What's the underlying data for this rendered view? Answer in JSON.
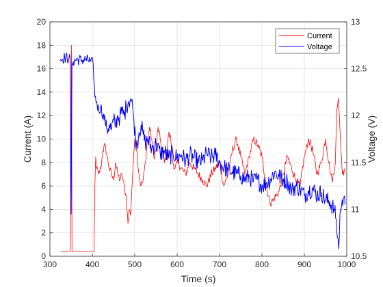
{
  "chart_data": {
    "type": "line",
    "xlabel": "Time (s)",
    "ylabel_left": "Current (A)",
    "ylabel_right": "Voltage (V)",
    "xlim": [
      300,
      1000
    ],
    "ylim_left": [
      0,
      20
    ],
    "ylim_right": [
      10.5,
      13
    ],
    "x_ticks": [
      "300",
      "400",
      "500",
      "600",
      "700",
      "800",
      "900",
      "1000"
    ],
    "y_left_ticks": [
      "0",
      "2",
      "4",
      "6",
      "8",
      "10",
      "12",
      "14",
      "16",
      "18",
      "20"
    ],
    "y_right_ticks": [
      "10.5",
      "11",
      "11.5",
      "12",
      "12.5",
      "13"
    ],
    "grid": true,
    "legend": "top-right",
    "series": [
      {
        "name": "Current",
        "axis": "left",
        "color": "#ff0000",
        "x": [
          325,
          345,
          348,
          349,
          350,
          351,
          352,
          354,
          360,
          380,
          404,
          406,
          408,
          410,
          415,
          420,
          425,
          430,
          435,
          440,
          445,
          450,
          455,
          460,
          465,
          470,
          475,
          480,
          484,
          487,
          490,
          495,
          500,
          505,
          510,
          515,
          520,
          525,
          530,
          535,
          540,
          545,
          550,
          555,
          560,
          565,
          570,
          575,
          580,
          585,
          590,
          595,
          600,
          610,
          620,
          630,
          640,
          650,
          660,
          670,
          680,
          690,
          700,
          710,
          720,
          730,
          740,
          750,
          760,
          770,
          780,
          790,
          800,
          810,
          820,
          830,
          840,
          850,
          860,
          870,
          880,
          890,
          900,
          910,
          920,
          930,
          940,
          950,
          960,
          965,
          970,
          973,
          976,
          980,
          985,
          990,
          995
        ],
        "y": [
          0.4,
          0.4,
          0.4,
          5,
          10,
          18,
          0.4,
          0.4,
          0.4,
          0.4,
          0.4,
          6,
          8.5,
          7.5,
          7,
          7.5,
          9,
          9.5,
          8.5,
          7.5,
          7,
          6.5,
          8,
          7,
          6.5,
          7,
          6,
          5,
          2.8,
          4,
          3.5,
          7,
          10,
          9,
          7,
          6,
          6.5,
          8,
          10,
          11,
          10,
          8.5,
          9,
          11,
          10,
          9,
          8,
          9,
          10.5,
          10,
          8,
          7.5,
          8,
          7.5,
          7,
          8,
          7.5,
          7,
          6.5,
          6,
          7,
          7.5,
          8,
          6,
          7,
          9,
          10,
          8.5,
          7,
          8.5,
          10,
          9.5,
          8.5,
          6,
          4.5,
          5,
          5.5,
          7,
          8.5,
          7.5,
          6.5,
          6,
          8.5,
          10,
          9,
          7,
          8,
          10,
          7.5,
          6.5,
          7,
          8,
          12.5,
          13.5,
          10,
          7,
          7.5
        ]
      },
      {
        "name": "Voltage",
        "axis": "right",
        "color": "#0000ff",
        "x": [
          325,
          335,
          345,
          348,
          349,
          350,
          352,
          355,
          365,
          375,
          385,
          395,
          402,
          406,
          410,
          415,
          420,
          425,
          430,
          435,
          440,
          445,
          450,
          455,
          460,
          465,
          470,
          475,
          480,
          485,
          490,
          495,
          498,
          502,
          506,
          510,
          515,
          520,
          525,
          530,
          540,
          550,
          560,
          570,
          580,
          590,
          600,
          610,
          620,
          630,
          640,
          650,
          660,
          670,
          680,
          690,
          700,
          710,
          720,
          730,
          740,
          750,
          760,
          770,
          780,
          790,
          800,
          810,
          820,
          830,
          840,
          850,
          860,
          870,
          880,
          890,
          900,
          910,
          920,
          930,
          940,
          950,
          960,
          970,
          975,
          978,
          981,
          984,
          988,
          992,
          996
        ],
        "y": [
          12.6,
          12.62,
          12.61,
          12.6,
          11.2,
          10.95,
          12.55,
          12.58,
          12.6,
          12.59,
          12.6,
          12.58,
          12.55,
          12.2,
          12.15,
          12.05,
          12.1,
          12.0,
          11.95,
          11.85,
          11.9,
          11.85,
          11.95,
          11.9,
          12.0,
          11.98,
          12.05,
          12.0,
          12.1,
          12.15,
          12.18,
          12.1,
          11.95,
          11.75,
          11.7,
          11.82,
          11.9,
          11.8,
          11.7,
          11.75,
          11.65,
          11.7,
          11.6,
          11.62,
          11.55,
          11.6,
          11.55,
          11.58,
          11.52,
          11.58,
          11.55,
          11.5,
          11.52,
          11.6,
          11.55,
          11.58,
          11.5,
          11.45,
          11.42,
          11.4,
          11.38,
          11.36,
          11.32,
          11.35,
          11.3,
          11.32,
          11.25,
          11.28,
          11.32,
          11.4,
          11.35,
          11.32,
          11.3,
          11.2,
          11.25,
          11.22,
          11.15,
          11.2,
          11.22,
          11.15,
          11.18,
          11.1,
          11.08,
          11.0,
          10.9,
          10.7,
          10.58,
          10.95,
          11.05,
          11.12,
          11.05
        ]
      }
    ]
  }
}
